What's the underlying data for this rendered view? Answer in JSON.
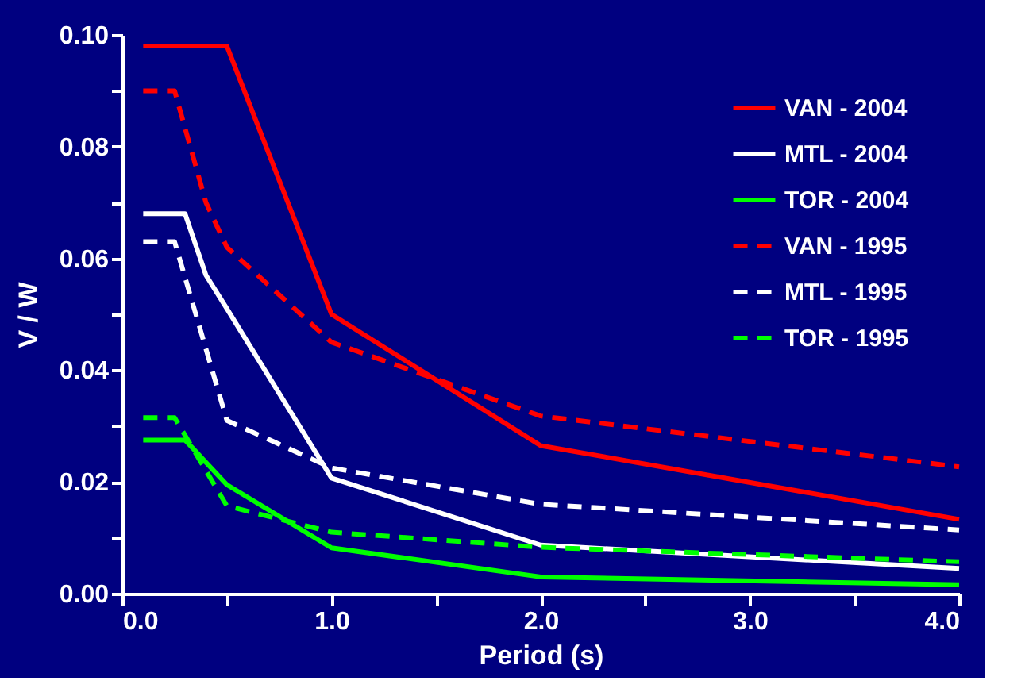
{
  "chart_data": {
    "type": "line",
    "xlabel": "Period (s)",
    "ylabel": "V / W",
    "xlim": [
      0,
      4
    ],
    "ylim": [
      0,
      0.1
    ],
    "xticks": [
      {
        "value": 0,
        "label": "0.0"
      },
      {
        "value": 0.5,
        "label": null
      },
      {
        "value": 1,
        "label": "1.0"
      },
      {
        "value": 1.5,
        "label": null
      },
      {
        "value": 2,
        "label": "2.0"
      },
      {
        "value": 2.5,
        "label": null
      },
      {
        "value": 3,
        "label": "3.0"
      },
      {
        "value": 3.5,
        "label": null
      },
      {
        "value": 4,
        "label": "4.0"
      }
    ],
    "yticks": [
      {
        "value": 0,
        "label": "0.00"
      },
      {
        "value": 0.01,
        "label": null
      },
      {
        "value": 0.02,
        "label": "0.02"
      },
      {
        "value": 0.03,
        "label": null
      },
      {
        "value": 0.04,
        "label": "0.04"
      },
      {
        "value": 0.05,
        "label": null
      },
      {
        "value": 0.06,
        "label": "0.06"
      },
      {
        "value": 0.07,
        "label": null
      },
      {
        "value": 0.08,
        "label": "0.08"
      },
      {
        "value": 0.09,
        "label": null
      },
      {
        "value": 0.1,
        "label": "0.10"
      }
    ],
    "grid": false,
    "legend": "top right",
    "marker": "none",
    "series": [
      {
        "name": "VAN - 2004",
        "color": "#ff0000",
        "line_style": "solid",
        "x": [
          0.1,
          0.5,
          1,
          2,
          4
        ],
        "values": [
          0.098,
          0.098,
          0.05,
          0.0265,
          0.0133
        ]
      },
      {
        "name": "MTL - 2004",
        "color": "#ffffff",
        "line_style": "solid",
        "x": [
          0.1,
          0.3,
          0.4,
          0.5,
          1,
          2,
          4
        ],
        "values": [
          0.068,
          0.068,
          0.057,
          0.051,
          0.0207,
          0.0087,
          0.0045
        ]
      },
      {
        "name": "TOR - 2004",
        "color": "#00ff00",
        "line_style": "solid",
        "x": [
          0.1,
          0.3,
          0.5,
          1,
          2,
          4
        ],
        "values": [
          0.0275,
          0.0275,
          0.0195,
          0.0082,
          0.003,
          0.0016
        ]
      },
      {
        "name": "VAN - 1995",
        "color": "#ff0000",
        "line_style": "dashed",
        "x": [
          0.1,
          0.25,
          0.4,
          0.5,
          1,
          2,
          4
        ],
        "values": [
          0.09,
          0.09,
          0.07,
          0.062,
          0.045,
          0.0318,
          0.0227
        ]
      },
      {
        "name": "MTL - 1995",
        "color": "#ffffff",
        "line_style": "dashed",
        "x": [
          0.1,
          0.25,
          0.5,
          1,
          2,
          4
        ],
        "values": [
          0.063,
          0.063,
          0.031,
          0.0225,
          0.016,
          0.0114
        ]
      },
      {
        "name": "TOR - 1995",
        "color": "#00ff00",
        "line_style": "dashed",
        "x": [
          0.1,
          0.25,
          0.5,
          1,
          2,
          4
        ],
        "values": [
          0.0315,
          0.0315,
          0.0157,
          0.011,
          0.0083,
          0.0057
        ]
      }
    ]
  }
}
